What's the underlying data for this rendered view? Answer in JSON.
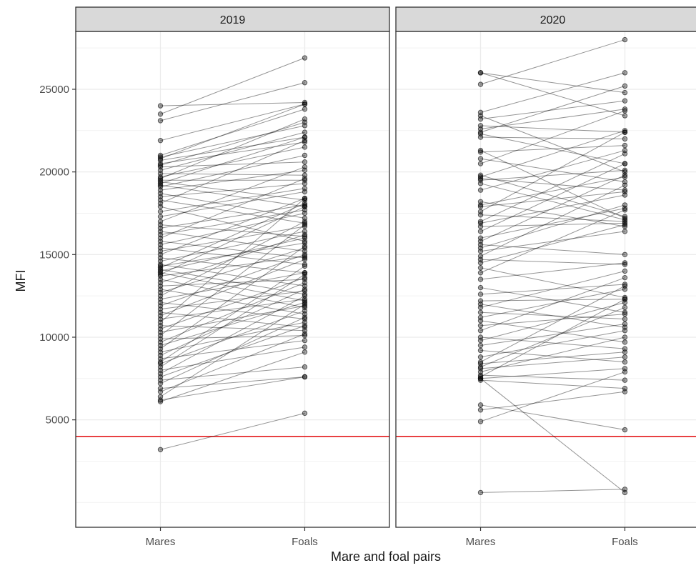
{
  "chart_data": {
    "type": "line",
    "xlabel": "Mare and foal pairs",
    "ylabel": "MFI",
    "categories": [
      "Mares",
      "Foals"
    ],
    "y_ticks": [
      5000,
      10000,
      15000,
      20000,
      25000
    ],
    "ylim": [
      -1500,
      28500
    ],
    "grid": true,
    "threshold": {
      "value": 4000,
      "color": "#e41a1c"
    },
    "colors": {
      "point": "#000000",
      "line": "#000000",
      "strip_bg": "#d9d9d9",
      "grid": "#ebebeb",
      "border": "#333333"
    },
    "panels": [
      {
        "label": "2019",
        "pairs": [
          [
            24000,
            24200
          ],
          [
            23500,
            26900
          ],
          [
            23100,
            25400
          ],
          [
            21900,
            24100
          ],
          [
            21000,
            23800
          ],
          [
            20900,
            22800
          ],
          [
            20800,
            24100
          ],
          [
            20700,
            22100
          ],
          [
            20500,
            21800
          ],
          [
            20400,
            23000
          ],
          [
            20300,
            20600
          ],
          [
            20100,
            22400
          ],
          [
            19900,
            19800
          ],
          [
            19700,
            21500
          ],
          [
            19600,
            23200
          ],
          [
            19500,
            19500
          ],
          [
            19400,
            18300
          ],
          [
            19300,
            22100
          ],
          [
            19200,
            17900
          ],
          [
            19100,
            21000
          ],
          [
            18900,
            20100
          ],
          [
            18700,
            17200
          ],
          [
            18500,
            19300
          ],
          [
            18300,
            16900
          ],
          [
            18100,
            21900
          ],
          [
            17900,
            15800
          ],
          [
            17600,
            19000
          ],
          [
            17300,
            18800
          ],
          [
            17000,
            20300
          ],
          [
            16800,
            16100
          ],
          [
            16600,
            18000
          ],
          [
            16400,
            15200
          ],
          [
            16200,
            17700
          ],
          [
            16000,
            19600
          ],
          [
            15800,
            14800
          ],
          [
            15600,
            17500
          ],
          [
            15400,
            14400
          ],
          [
            15200,
            16700
          ],
          [
            15000,
            18400
          ],
          [
            14800,
            13900
          ],
          [
            14600,
            16400
          ],
          [
            14400,
            13100
          ],
          [
            14300,
            15700
          ],
          [
            14200,
            18100
          ],
          [
            14100,
            12600
          ],
          [
            14000,
            16000
          ],
          [
            13900,
            12200
          ],
          [
            13800,
            17900
          ],
          [
            13700,
            14900
          ],
          [
            13500,
            11800
          ],
          [
            13300,
            16200
          ],
          [
            13100,
            13500
          ],
          [
            12900,
            11400
          ],
          [
            12700,
            15400
          ],
          [
            12500,
            17000
          ],
          [
            12300,
            13900
          ],
          [
            12100,
            11100
          ],
          [
            11900,
            15000
          ],
          [
            11700,
            12800
          ],
          [
            11500,
            10600
          ],
          [
            11300,
            14700
          ],
          [
            11100,
            12300
          ],
          [
            10900,
            18400
          ],
          [
            10700,
            10400
          ],
          [
            10500,
            13600
          ],
          [
            10300,
            11900
          ],
          [
            10100,
            16800
          ],
          [
            9900,
            10100
          ],
          [
            9700,
            13300
          ],
          [
            9500,
            12100
          ],
          [
            9300,
            15500
          ],
          [
            9100,
            10900
          ],
          [
            8900,
            12900
          ],
          [
            8700,
            9800
          ],
          [
            8500,
            14300
          ],
          [
            8400,
            11600
          ],
          [
            8200,
            13800
          ],
          [
            8000,
            9400
          ],
          [
            7800,
            12500
          ],
          [
            7600,
            10700
          ],
          [
            7400,
            8200
          ],
          [
            7200,
            11200
          ],
          [
            6900,
            7600
          ],
          [
            6700,
            10200
          ],
          [
            6400,
            12000
          ],
          [
            6200,
            7600
          ],
          [
            6100,
            9100
          ],
          [
            3200,
            5400
          ]
        ]
      },
      {
        "label": "2020",
        "pairs": [
          [
            26000,
            23400
          ],
          [
            26000,
            24800
          ],
          [
            25300,
            28000
          ],
          [
            23600,
            26000
          ],
          [
            23400,
            20000
          ],
          [
            23200,
            24300
          ],
          [
            22800,
            22400
          ],
          [
            22600,
            23800
          ],
          [
            22400,
            25200
          ],
          [
            22300,
            20500
          ],
          [
            22100,
            22000
          ],
          [
            21300,
            17200
          ],
          [
            21200,
            21600
          ],
          [
            20800,
            19400
          ],
          [
            20500,
            23700
          ],
          [
            19800,
            17300
          ],
          [
            19700,
            22500
          ],
          [
            19600,
            18900
          ],
          [
            19500,
            20100
          ],
          [
            19300,
            17100
          ],
          [
            18900,
            21300
          ],
          [
            18200,
            16700
          ],
          [
            18000,
            19700
          ],
          [
            17900,
            18800
          ],
          [
            17600,
            22400
          ],
          [
            17400,
            17000
          ],
          [
            17000,
            21100
          ],
          [
            16900,
            18600
          ],
          [
            16700,
            16900
          ],
          [
            16400,
            20500
          ],
          [
            16000,
            17800
          ],
          [
            15800,
            19800
          ],
          [
            15600,
            15000
          ],
          [
            15400,
            18000
          ],
          [
            15200,
            16400
          ],
          [
            14900,
            19200
          ],
          [
            14700,
            14400
          ],
          [
            14500,
            16800
          ],
          [
            14200,
            12400
          ],
          [
            13900,
            17700
          ],
          [
            13500,
            14500
          ],
          [
            13000,
            11500
          ],
          [
            12600,
            13200
          ],
          [
            12200,
            12300
          ],
          [
            12000,
            10600
          ],
          [
            11800,
            14000
          ],
          [
            11500,
            11100
          ],
          [
            11200,
            12900
          ],
          [
            11000,
            9700
          ],
          [
            10700,
            11400
          ],
          [
            10400,
            13600
          ],
          [
            10000,
            9300
          ],
          [
            9800,
            12100
          ],
          [
            9500,
            10800
          ],
          [
            9200,
            8500
          ],
          [
            8800,
            10400
          ],
          [
            8500,
            13100
          ],
          [
            8400,
            9100
          ],
          [
            8200,
            11800
          ],
          [
            8100,
            8800
          ],
          [
            7900,
            10000
          ],
          [
            7700,
            7400
          ],
          [
            7600,
            12300
          ],
          [
            7500,
            8100
          ],
          [
            7400,
            6900
          ],
          [
            7500,
            600
          ],
          [
            5900,
            4400
          ],
          [
            5600,
            6700
          ],
          [
            4900,
            7900
          ],
          [
            600,
            800
          ]
        ]
      }
    ]
  }
}
